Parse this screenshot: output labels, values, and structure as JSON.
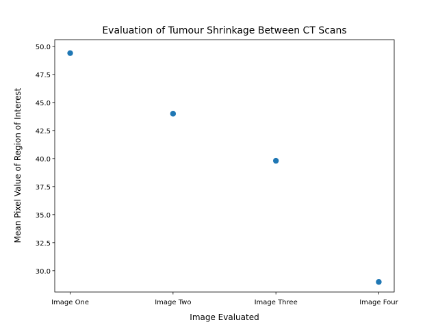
{
  "chart_data": {
    "type": "scatter",
    "title": "Evaluation of Tumour Shrinkage Between CT Scans",
    "xlabel": "Image Evaluated",
    "ylabel": "Mean Pixel Value of Region of Interest",
    "categories": [
      "Image One",
      "Image Two",
      "Image Three",
      "Image Four"
    ],
    "values": [
      49.4,
      44.0,
      39.8,
      29.0
    ],
    "ylim": [
      28.1,
      50.6
    ],
    "yticks": [
      "30.0",
      "32.5",
      "35.0",
      "37.5",
      "40.0",
      "42.5",
      "45.0",
      "47.5",
      "50.0"
    ],
    "grid": false,
    "point_color": "#1f77b4"
  }
}
